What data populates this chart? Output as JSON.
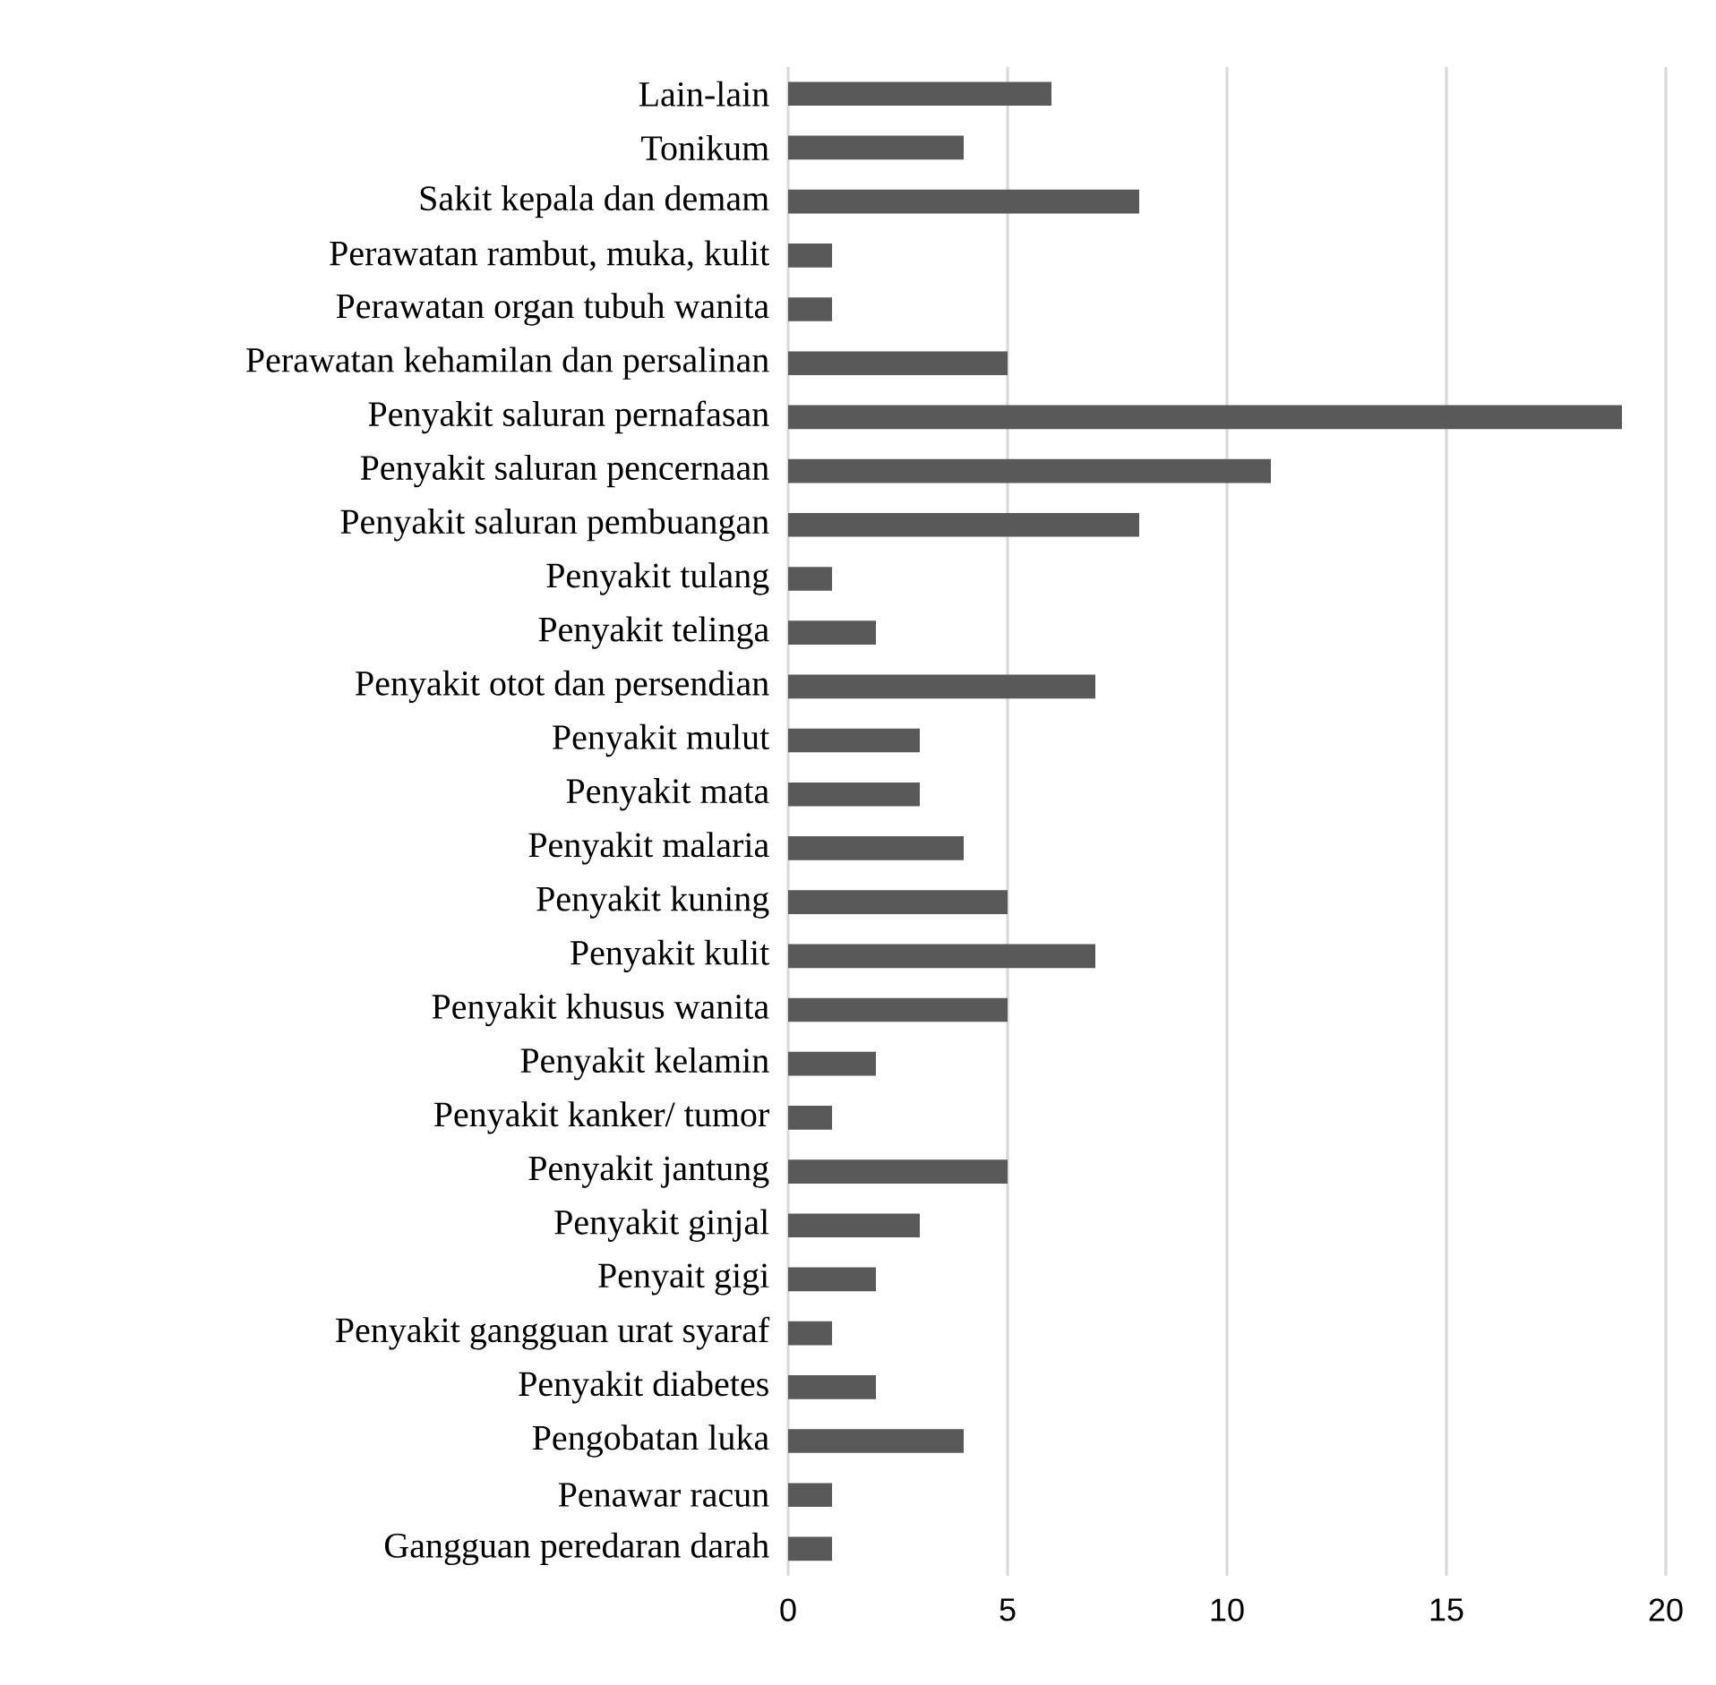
{
  "chart_data": {
    "type": "bar",
    "orientation": "horizontal",
    "categories": [
      "Lain-lain",
      "Tonikum",
      "Sakit kepala dan demam",
      "Perawatan rambut, muka, kulit",
      "Perawatan organ tubuh wanita",
      "Perawatan kehamilan dan persalinan",
      "Penyakit saluran pernafasan",
      "Penyakit saluran pencernaan",
      "Penyakit saluran pembuangan",
      "Penyakit tulang",
      "Penyakit telinga",
      "Penyakit otot dan persendian",
      "Penyakit mulut",
      "Penyakit mata",
      "Penyakit malaria",
      "Penyakit kuning",
      "Penyakit kulit",
      "Penyakit khusus wanita",
      "Penyakit kelamin",
      "Penyakit kanker/ tumor",
      "Penyakit jantung",
      "Penyakit ginjal",
      "Penyait gigi",
      "Penyakit gangguan urat syaraf",
      "Penyakit diabetes",
      "Pengobatan luka",
      "Penawar racun",
      "Gangguan peredaran darah"
    ],
    "values": [
      6,
      4,
      8,
      1,
      1,
      5,
      19,
      11,
      8,
      1,
      2,
      7,
      3,
      3,
      4,
      5,
      7,
      5,
      2,
      1,
      5,
      3,
      2,
      1,
      2,
      4,
      1,
      1
    ],
    "color": "#595959",
    "xlim": [
      0,
      20
    ],
    "xticks": [
      0,
      5,
      10,
      15,
      20
    ],
    "grid": "x"
  }
}
